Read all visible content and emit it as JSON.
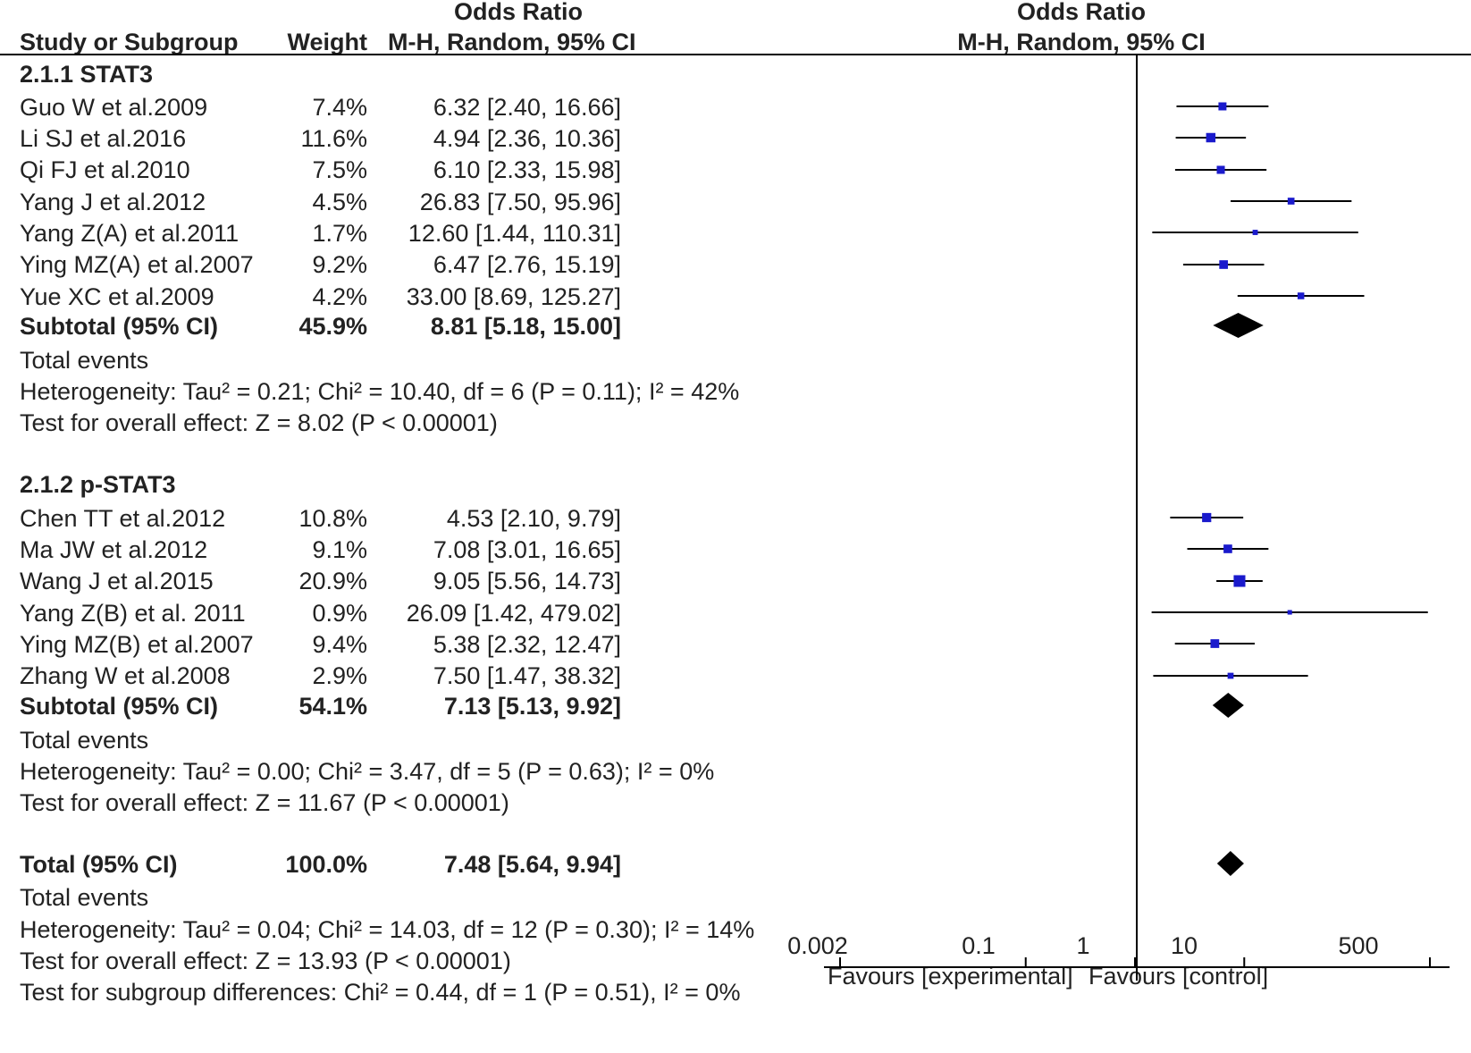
{
  "header": {
    "col_study": "Study or Subgroup",
    "col_weight": "Weight",
    "col_or_title": "Odds Ratio",
    "col_or_method": "M-H, Random, 95% CI",
    "plot_title": "Odds Ratio",
    "plot_method": "M-H, Random, 95% CI"
  },
  "groups": [
    {
      "title": "2.1.1 STAT3",
      "studies": [
        {
          "name": "Guo W et al.2009",
          "weight": "7.4%",
          "ci_text": "6.32 [2.40, 16.66]"
        },
        {
          "name": "Li SJ et al.2016",
          "weight": "11.6%",
          "ci_text": "4.94 [2.36, 10.36]"
        },
        {
          "name": "Qi FJ et al.2010",
          "weight": "7.5%",
          "ci_text": "6.10 [2.33, 15.98]"
        },
        {
          "name": "Yang J et al.2012",
          "weight": "4.5%",
          "ci_text": "26.83 [7.50, 95.96]"
        },
        {
          "name": "Yang Z(A) et al.2011",
          "weight": "1.7%",
          "ci_text": "12.60 [1.44, 110.31]"
        },
        {
          "name": "Ying MZ(A) et al.2007",
          "weight": "9.2%",
          "ci_text": "6.47 [2.76, 15.19]"
        },
        {
          "name": "Yue XC et al.2009",
          "weight": "4.2%",
          "ci_text": "33.00 [8.69, 125.27]"
        }
      ],
      "subtotal": {
        "label": "Subtotal (95% CI)",
        "weight": "45.9%",
        "ci_text": "8.81 [5.18, 15.00]"
      },
      "total_events": "Total events",
      "heterogeneity": "Heterogeneity: Tau² = 0.21; Chi² = 10.40, df = 6 (P = 0.11); I² = 42%",
      "overall": "Test for overall effect: Z = 8.02 (P < 0.00001)"
    },
    {
      "title": "2.1.2 p-STAT3",
      "studies": [
        {
          "name": "Chen TT et al.2012",
          "weight": "10.8%",
          "ci_text": "4.53 [2.10, 9.79]"
        },
        {
          "name": "Ma JW et al.2012",
          "weight": "9.1%",
          "ci_text": "7.08 [3.01, 16.65]"
        },
        {
          "name": "Wang J et al.2015",
          "weight": "20.9%",
          "ci_text": "9.05 [5.56, 14.73]"
        },
        {
          "name": "Yang Z(B) et al. 2011",
          "weight": "0.9%",
          "ci_text": "26.09 [1.42, 479.02]"
        },
        {
          "name": "Ying MZ(B) et al.2007",
          "weight": "9.4%",
          "ci_text": "5.38 [2.32, 12.47]"
        },
        {
          "name": "Zhang W et al.2008",
          "weight": "2.9%",
          "ci_text": "7.50 [1.47, 38.32]"
        }
      ],
      "subtotal": {
        "label": "Subtotal (95% CI)",
        "weight": "54.1%",
        "ci_text": "7.13 [5.13, 9.92]"
      },
      "total_events": "Total events",
      "heterogeneity": "Heterogeneity: Tau² = 0.00; Chi² = 3.47, df = 5 (P = 0.63); I² = 0%",
      "overall": "Test for overall effect: Z = 11.67 (P < 0.00001)"
    }
  ],
  "total": {
    "label": "Total (95% CI)",
    "weight": "100.0%",
    "ci_text": "7.48 [5.64, 9.94]",
    "total_events": "Total events",
    "heterogeneity": "Heterogeneity: Tau² = 0.04; Chi² = 14.03, df = 12 (P = 0.30); I² = 14%",
    "overall": "Test for overall effect: Z = 13.93 (P < 0.00001)",
    "subgroup": "Test for subgroup differences: Chi² = 0.44, df = 1 (P = 0.51), I² = 0%"
  },
  "axis": {
    "ticks": [
      "0.002",
      "0.1",
      "1",
      "10",
      "500"
    ],
    "favours_left": "Favours [experimental]",
    "favours_right": "Favours [control]"
  },
  "colors": {
    "study_marker": "#1a1acc",
    "summary_diamond": "#000000",
    "line": "#000000"
  },
  "chart_data": {
    "type": "forest",
    "scale": "log",
    "xlim": [
      0.002,
      500
    ],
    "ticks": [
      0.002,
      0.1,
      1,
      10,
      500
    ],
    "null_line": 1,
    "study_rows": [
      {
        "or": 6.32,
        "lo": 2.4,
        "hi": 16.66,
        "weight": 7.4
      },
      {
        "or": 4.94,
        "lo": 2.36,
        "hi": 10.36,
        "weight": 11.6
      },
      {
        "or": 6.1,
        "lo": 2.33,
        "hi": 15.98,
        "weight": 7.5
      },
      {
        "or": 26.83,
        "lo": 7.5,
        "hi": 95.96,
        "weight": 4.5
      },
      {
        "or": 12.6,
        "lo": 1.44,
        "hi": 110.31,
        "weight": 1.7
      },
      {
        "or": 6.47,
        "lo": 2.76,
        "hi": 15.19,
        "weight": 9.2
      },
      {
        "or": 33.0,
        "lo": 8.69,
        "hi": 125.27,
        "weight": 4.2
      },
      {
        "or": 4.53,
        "lo": 2.1,
        "hi": 9.79,
        "weight": 10.8
      },
      {
        "or": 7.08,
        "lo": 3.01,
        "hi": 16.65,
        "weight": 9.1
      },
      {
        "or": 9.05,
        "lo": 5.56,
        "hi": 14.73,
        "weight": 20.9
      },
      {
        "or": 26.09,
        "lo": 1.42,
        "hi": 479.02,
        "weight": 0.9
      },
      {
        "or": 5.38,
        "lo": 2.32,
        "hi": 12.47,
        "weight": 9.4
      },
      {
        "or": 7.5,
        "lo": 1.47,
        "hi": 38.32,
        "weight": 2.9
      }
    ],
    "summary_rows": [
      {
        "or": 8.81,
        "lo": 5.18,
        "hi": 15.0
      },
      {
        "or": 7.13,
        "lo": 5.13,
        "hi": 9.92
      },
      {
        "or": 7.48,
        "lo": 5.64,
        "hi": 9.94
      }
    ]
  }
}
